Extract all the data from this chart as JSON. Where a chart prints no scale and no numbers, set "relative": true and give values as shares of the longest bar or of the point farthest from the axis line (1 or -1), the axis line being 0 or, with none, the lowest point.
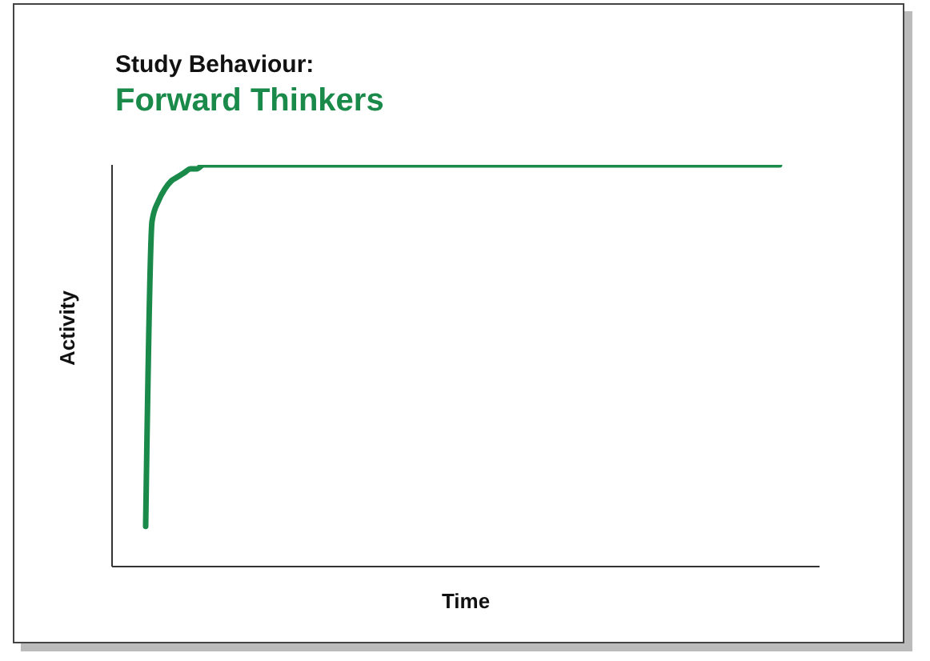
{
  "chart_data": {
    "type": "line",
    "title": "Study Behaviour:",
    "subtitle": "Forward Thinkers",
    "xlabel": "Time",
    "ylabel": "Activity",
    "relative": true,
    "categories": [
      null,
      null,
      null,
      null,
      null,
      null,
      null,
      null,
      null,
      null,
      null,
      null,
      null,
      null,
      null,
      null,
      null,
      null,
      null,
      null,
      null,
      null,
      null,
      null,
      null,
      null,
      null,
      null,
      null,
      null,
      null,
      null,
      null,
      null,
      null,
      null,
      null,
      null,
      null,
      null,
      null,
      null,
      null,
      null,
      null,
      null,
      null,
      null,
      null,
      null,
      null,
      null,
      null,
      null,
      null,
      null,
      null,
      null,
      null,
      null,
      null,
      null,
      null,
      null,
      null,
      null,
      null,
      null,
      null,
      null,
      null,
      null,
      null,
      null,
      null,
      null,
      null,
      null,
      null,
      null,
      null,
      null,
      null,
      null,
      null,
      null,
      null,
      null,
      null,
      null,
      null,
      null,
      null,
      null,
      null,
      null,
      null,
      null,
      null,
      null
    ],
    "series": [
      {
        "color": "#1a8a4a",
        "values": [
          0.1,
          0.86,
          0.91,
          0.94,
          0.96,
          0.97,
          0.98,
          0.99,
          0.99,
          1,
          1,
          1,
          1,
          1,
          1,
          1,
          1,
          1,
          1,
          1,
          1,
          1,
          1,
          1,
          1,
          1,
          1,
          1,
          1,
          1,
          1,
          1,
          1,
          1,
          1,
          1,
          1,
          1,
          1,
          1,
          1,
          1,
          1,
          1,
          1,
          1,
          1,
          1,
          1,
          1,
          1,
          1,
          1,
          1,
          1,
          1,
          1,
          1,
          1,
          1,
          1,
          1,
          1,
          1,
          1,
          1,
          1,
          1,
          1,
          1,
          1,
          1,
          1,
          1,
          1,
          1,
          1,
          1,
          1,
          1,
          1,
          1,
          1,
          1,
          1,
          1,
          1,
          1,
          1,
          1,
          1,
          1,
          1,
          1,
          1,
          1,
          1,
          1,
          1,
          1
        ]
      }
    ]
  }
}
